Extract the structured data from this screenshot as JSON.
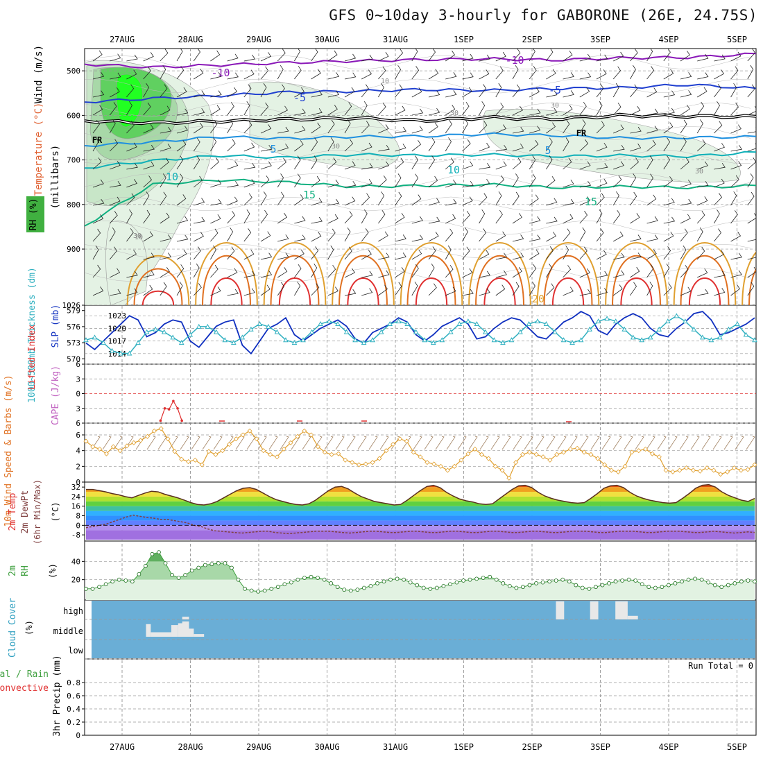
{
  "title": "GFS 0~10day 3-hourly for GABORONE (26E, 24.75S)",
  "chart_data": {
    "type": "meteogram",
    "time_axis": {
      "labels": [
        "27AUG",
        "28AUG",
        "29AUG",
        "30AUG",
        "31AUG",
        "1SEP",
        "2SEP",
        "3SEP",
        "4SEP",
        "5SEP"
      ],
      "step_hours": 3,
      "span_days": 9.7
    },
    "colors": {
      "purple": "#8a18b8",
      "blue": "#2040d0",
      "lightblue": "#1e90e0",
      "teal": "#10b0b8",
      "green": "#10b080",
      "gold": "#e0a030",
      "orange": "#e07020",
      "red": "#e03030",
      "cyan": "#30b0c0",
      "darkblue": "#1030c0",
      "rhgreen": "#40a040",
      "cloud": "#6aaed6",
      "lightgreen": "#40ff40",
      "brown": "#a08060"
    },
    "upper_air": {
      "ylabel_wind": "Wind (m/s)",
      "ylabel_temp": "Temperature (°C)",
      "ylabel_rh": "RH (%)",
      "ylabel_pressure": "(millibars)",
      "pressure_ticks": [
        500,
        600,
        700,
        800,
        900,
        1026
      ],
      "ylim_mb": [
        450,
        1026
      ],
      "rh_contour_labels": [
        "10",
        "30",
        "30",
        "30",
        "30",
        "10",
        "30"
      ],
      "freezing_label": "FR",
      "isotherm_labels": [
        {
          "text": "-10",
          "color": "purple",
          "mb": 500
        },
        {
          "text": "-10",
          "color": "purple",
          "mb": 480
        },
        {
          "text": "-5",
          "color": "blue",
          "mb": 565
        },
        {
          "text": "-5",
          "color": "blue",
          "mb": 542
        },
        {
          "text": "5",
          "color": "lightblue",
          "mb": 645
        },
        {
          "text": "5",
          "color": "lightblue",
          "mb": 648
        },
        {
          "text": "10",
          "color": "teal",
          "mb": 702
        },
        {
          "text": "10",
          "color": "teal",
          "mb": 688
        },
        {
          "text": "15",
          "color": "green",
          "mb": 758
        },
        {
          "text": "15",
          "color": "green",
          "mb": 765
        },
        {
          "text": "20",
          "color": "gold",
          "mb": 1012
        }
      ],
      "isotherm_levels": [
        {
          "temp": -10,
          "color": "purple",
          "mb": [
            485,
            492,
            487,
            482,
            478,
            475,
            473,
            476,
            471,
            470,
            462
          ]
        },
        {
          "temp": -5,
          "color": "blue",
          "mb": [
            570,
            562,
            556,
            548,
            546,
            542,
            544,
            540,
            538,
            531,
            540
          ]
        },
        {
          "temp": 0,
          "color": "black",
          "mb": [
            612,
            617,
            613,
            609,
            606,
            612,
            605,
            608,
            600,
            602,
            603
          ]
        },
        {
          "temp": 5,
          "color": "lightblue",
          "mb": [
            668,
            660,
            648,
            652,
            648,
            647,
            642,
            645,
            651,
            650,
            648
          ]
        },
        {
          "temp": 10,
          "color": "teal",
          "mb": [
            718,
            702,
            690,
            695,
            688,
            690,
            688,
            692,
            690,
            692,
            683
          ]
        },
        {
          "temp": 15,
          "color": "green",
          "mb": [
            848,
            755,
            745,
            750,
            760,
            758,
            755,
            762,
            760,
            762,
            758
          ]
        }
      ]
    },
    "thickness_slp": {
      "ylabel_thickness": "1000~500mb Thickness (dm)",
      "ylabel_slp": "SLP (mb)",
      "thickness_ticks": [
        570,
        573,
        576,
        579
      ],
      "slp_ticks": [
        1014,
        1017,
        1020,
        1023
      ],
      "thickness_ylim": [
        569,
        580
      ],
      "slp_ylim": [
        1011.5,
        1025.5
      ],
      "slp_mb": [
        1016.5,
        1015,
        1017,
        1019,
        1021,
        1023,
        1022,
        1018,
        1019,
        1021,
        1022,
        1021.5,
        1017,
        1015.5,
        1018,
        1020.5,
        1021.5,
        1022,
        1016,
        1014,
        1017,
        1020,
        1021,
        1022.5,
        1018.5,
        1017,
        1018.5,
        1020,
        1021,
        1022,
        1020.5,
        1017.5,
        1016.5,
        1019,
        1020,
        1021,
        1022.5,
        1021.5,
        1018.5,
        1017,
        1018.5,
        1020.5,
        1021.5,
        1022.5,
        1021,
        1017.5,
        1018,
        1020,
        1021.5,
        1022.5,
        1022,
        1020,
        1018,
        1017.5,
        1019.5,
        1021.5,
        1022.5,
        1024,
        1023,
        1019.5,
        1018.5,
        1021,
        1022.5,
        1023.5,
        1022.5,
        1020,
        1018.5,
        1018,
        1020,
        1021.5,
        1023.5,
        1024,
        1022,
        1018.5,
        1019,
        1020,
        1021,
        1022.5
      ],
      "thickness_dm": [
        573.5,
        574,
        573,
        571.5,
        571,
        571,
        573,
        575,
        575.5,
        575,
        574,
        573,
        574.5,
        576,
        576,
        575,
        573.5,
        573,
        574,
        575.5,
        576.5,
        576,
        575,
        573.5,
        573,
        573.5,
        575,
        576.5,
        577,
        576.5,
        575,
        573.5,
        573,
        573.5,
        575,
        576.5,
        577,
        576.5,
        575,
        573.5,
        573,
        573.5,
        575,
        576.5,
        577,
        576.5,
        575,
        573.5,
        573,
        573.5,
        575,
        576.5,
        577,
        576.5,
        575,
        573.5,
        573,
        573.5,
        575.5,
        577,
        577.5,
        577,
        575.5,
        574,
        573.5,
        574,
        575.5,
        577,
        578,
        577,
        575.5,
        574,
        573.5,
        574,
        575.5,
        576.5,
        574.5,
        573.5
      ]
    },
    "stability": {
      "ylabel_li": "Lifted Index",
      "ylabel_cape": "CAPE (J/kg)",
      "ticks": [
        -6,
        -3,
        0,
        3,
        6
      ],
      "ylim": [
        -6,
        6
      ],
      "li_points": [
        [
          4.5,
          5.5
        ],
        [
          5,
          3
        ],
        [
          5.5,
          3.2
        ],
        [
          6,
          1.5
        ],
        [
          6.5,
          3
        ],
        [
          7,
          5.5
        ]
      ]
    },
    "wind10m": {
      "ylabel": "10m Wind Speed & Barbs (m/s)",
      "ticks": [
        0,
        2,
        4,
        6
      ],
      "ylim": [
        0,
        7.5
      ],
      "speed_ms": [
        5.2,
        4.5,
        4.2,
        3.6,
        4.5,
        4.0,
        4.6,
        5.0,
        5.3,
        5.8,
        6.5,
        6.8,
        5.5,
        3.9,
        2.9,
        2.6,
        2.8,
        2.2,
        3.9,
        3.5,
        4.0,
        4.8,
        5.5,
        6.0,
        6.5,
        5.5,
        4.0,
        3.5,
        3.2,
        4.2,
        5.0,
        5.8,
        6.5,
        6.0,
        4.5,
        3.8,
        3.5,
        3.6,
        2.8,
        2.5,
        2.2,
        2.3,
        2.5,
        3.0,
        4.0,
        4.8,
        5.5,
        5.2,
        3.8,
        3.2,
        2.5,
        2.3,
        2.0,
        1.5,
        2.0,
        2.8,
        3.6,
        4.2,
        3.5,
        3.0,
        2.0,
        1.5,
        0.5,
        2.5,
        3.5,
        3.8,
        3.5,
        3.2,
        2.8,
        3.5,
        3.8,
        4.2,
        4.3,
        3.8,
        3.5,
        3.0,
        2.2,
        1.5,
        1.3,
        2.0,
        3.8,
        4.0,
        4.2,
        3.6,
        3.2,
        1.5,
        1.3,
        1.5,
        1.8,
        1.5,
        1.4,
        1.8,
        1.5,
        1.0,
        1.3,
        1.8,
        1.5,
        1.6,
        2.2
      ]
    },
    "temp2m": {
      "ylabel": "2m Temp 2m DewPt (6hr Min/Max) (°C)",
      "ticks": [
        -8,
        0,
        8,
        16,
        24,
        32
      ],
      "ylim": [
        -12,
        35
      ],
      "temp_c": [
        30,
        30,
        29,
        28,
        26.5,
        25.5,
        24,
        23,
        25,
        27,
        28.5,
        28,
        26,
        24.5,
        23,
        21,
        19,
        17.5,
        17,
        18,
        20,
        23,
        26,
        29,
        31,
        31.5,
        30,
        27,
        24,
        21.5,
        20,
        18.5,
        17.5,
        17,
        18,
        21,
        25,
        29,
        32,
        32.5,
        30.5,
        27,
        24,
        22,
        20,
        19,
        18,
        17,
        17.5,
        21,
        25,
        29,
        32.5,
        33.5,
        31.5,
        27.5,
        24.5,
        22,
        20.5,
        19.5,
        18,
        17.5,
        18,
        22,
        26,
        30,
        33,
        33.5,
        31.5,
        27.5,
        24.5,
        22.5,
        21,
        20,
        19,
        18.5,
        19,
        22.5,
        26.5,
        31,
        33,
        33.5,
        31.5,
        27.5,
        24.5,
        22.5,
        21,
        20,
        19,
        18.5,
        19,
        22.5,
        26.5,
        31,
        33.5,
        34,
        32,
        28,
        25,
        23,
        21,
        20,
        22.5
      ],
      "dewpt_c": [
        -2,
        -1,
        0,
        1,
        3,
        5,
        7,
        8.5,
        7.5,
        6.5,
        6,
        5,
        5,
        4,
        3,
        2,
        0,
        -1,
        -3,
        -4.5,
        -5,
        -5.5,
        -6,
        -6.5,
        -6,
        -5.5,
        -5,
        -5,
        -6,
        -6.5,
        -7,
        -6.5,
        -6,
        -5.5,
        -5,
        -5,
        -5,
        -5.5,
        -6,
        -6.5,
        -6,
        -5.5,
        -5,
        -5,
        -5.5,
        -6,
        -6,
        -5.5,
        -5,
        -5,
        -5.5,
        -6,
        -6,
        -5.5,
        -5,
        -5,
        -5.5,
        -6,
        -6,
        -5.5,
        -5,
        -5,
        -5.5,
        -6,
        -6,
        -5.5,
        -5,
        -5,
        -5.5,
        -6,
        -6,
        -5.5,
        -5,
        -5,
        -5,
        -5.5,
        -6,
        -6,
        -5.5,
        -5,
        -5,
        -5,
        -5.5,
        -6,
        -6,
        -5.5,
        -5,
        -5,
        -5,
        -5.5,
        -6,
        -6,
        -5.5,
        -5,
        -5.5,
        -6,
        -6.5,
        -6,
        -5.5,
        -6
      ]
    },
    "rh2m": {
      "ylabel": "2m RH (%)",
      "ticks": [
        20,
        40
      ],
      "ylim": [
        0,
        60
      ],
      "rh_percent": [
        10,
        10,
        12,
        15,
        18,
        20,
        19,
        18,
        26,
        35,
        48,
        50,
        38,
        25,
        22,
        25,
        30,
        33,
        36,
        37,
        38,
        38,
        33,
        20,
        10,
        8,
        7,
        8,
        10,
        12,
        15,
        17,
        20,
        22,
        23,
        22,
        20,
        16,
        12,
        9,
        8,
        9,
        11,
        13,
        16,
        18,
        20,
        21,
        20,
        17,
        14,
        11,
        10,
        11,
        13,
        15,
        17,
        19,
        20,
        21,
        22,
        23,
        20,
        16,
        13,
        11,
        12,
        14,
        16,
        17,
        18,
        19,
        20,
        18,
        14,
        11,
        10,
        12,
        14,
        16,
        18,
        19,
        20,
        19,
        15,
        12,
        11,
        12,
        14,
        16,
        18,
        20,
        21,
        20,
        17,
        14,
        12,
        14,
        16,
        18,
        19,
        18
      ]
    },
    "cloud": {
      "ylabel": "Cloud Cover (%)",
      "levels": [
        "high",
        "middle",
        "low"
      ],
      "bars": [
        {
          "start": 0.35,
          "end": 0.42,
          "level": "middle",
          "height": 0.7
        },
        {
          "start": 0.42,
          "end": 0.72,
          "level": "middle",
          "height": 0.25
        },
        {
          "start": 0.72,
          "end": 0.82,
          "level": "middle",
          "height": 0.65
        },
        {
          "start": 0.82,
          "end": 0.95,
          "level": "middle",
          "height": 0.75
        },
        {
          "start": 0.95,
          "end": 1.05,
          "level": "middle",
          "height": 0.45
        },
        {
          "start": 1.05,
          "end": 1.2,
          "level": "middle",
          "height": 0.15
        },
        {
          "start": 0.88,
          "end": 0.98,
          "level": "high",
          "height": 0.15
        },
        {
          "start": 0.88,
          "end": 0.98,
          "level": "middle",
          "height": 0.85
        },
        {
          "start": 6.35,
          "end": 6.47,
          "level": "high",
          "height": 1.0
        },
        {
          "start": 6.85,
          "end": 6.97,
          "level": "high",
          "height": 1.0
        },
        {
          "start": 7.22,
          "end": 7.4,
          "level": "high",
          "height": 1.0
        },
        {
          "start": 7.4,
          "end": 7.55,
          "level": "high",
          "height": 0.2
        }
      ]
    },
    "precip": {
      "ylabel": "3hr Precip (mm)",
      "legend_total": "Total / Rain",
      "legend_convective": "Convective",
      "run_total": "Run Total = 0",
      "ticks": [
        0,
        0.2,
        0.4,
        0.6,
        0.8
      ],
      "ylim": [
        0,
        1
      ],
      "values_mm": []
    }
  }
}
